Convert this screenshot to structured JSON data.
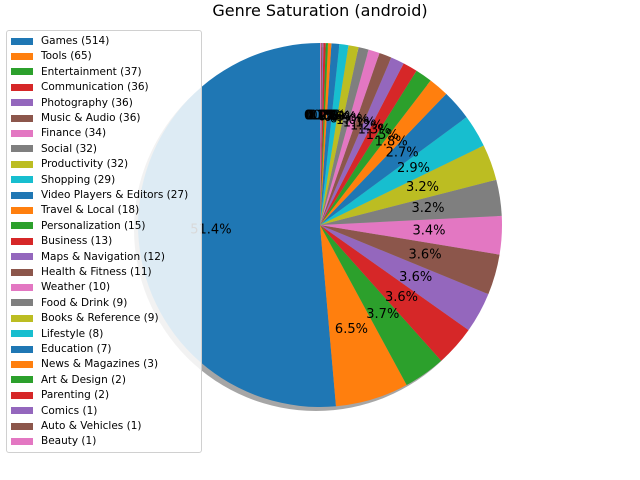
{
  "chart_data": {
    "type": "pie",
    "title": "Genre Saturation (android)",
    "start_angle_deg": 90,
    "direction": "counterclockwise",
    "shadow": true,
    "legend_position": "upper-left",
    "colors": [
      "#1f77b4",
      "#ff7f0e",
      "#2ca02c",
      "#d62728",
      "#9467bd",
      "#8c564b",
      "#e377c2",
      "#7f7f7f",
      "#bcbd22",
      "#17becf"
    ],
    "slices": [
      {
        "label": "Games (514)",
        "value": 514
      },
      {
        "label": "Tools (65)",
        "value": 65
      },
      {
        "label": "Entertainment (37)",
        "value": 37
      },
      {
        "label": "Communication (36)",
        "value": 36
      },
      {
        "label": "Photography (36)",
        "value": 36
      },
      {
        "label": "Music & Audio (36)",
        "value": 36
      },
      {
        "label": "Finance (34)",
        "value": 34
      },
      {
        "label": "Social (32)",
        "value": 32
      },
      {
        "label": "Productivity (32)",
        "value": 32
      },
      {
        "label": "Shopping (29)",
        "value": 29
      },
      {
        "label": "Video Players & Editors (27)",
        "value": 27
      },
      {
        "label": "Travel & Local (18)",
        "value": 18
      },
      {
        "label": "Personalization (15)",
        "value": 15
      },
      {
        "label": "Business (13)",
        "value": 13
      },
      {
        "label": "Maps & Navigation (12)",
        "value": 12
      },
      {
        "label": "Health & Fitness (11)",
        "value": 11
      },
      {
        "label": "Weather (10)",
        "value": 10
      },
      {
        "label": "Food & Drink (9)",
        "value": 9
      },
      {
        "label": "Books & Reference (9)",
        "value": 9
      },
      {
        "label": "Lifestyle (8)",
        "value": 8
      },
      {
        "label": "Education (7)",
        "value": 7
      },
      {
        "label": "News & Magazines (3)",
        "value": 3
      },
      {
        "label": "Art & Design (2)",
        "value": 2
      },
      {
        "label": "Parenting (2)",
        "value": 2
      },
      {
        "label": "Comics (1)",
        "value": 1
      },
      {
        "label": "Auto & Vehicles (1)",
        "value": 1
      },
      {
        "label": "Beauty (1)",
        "value": 1
      }
    ]
  }
}
